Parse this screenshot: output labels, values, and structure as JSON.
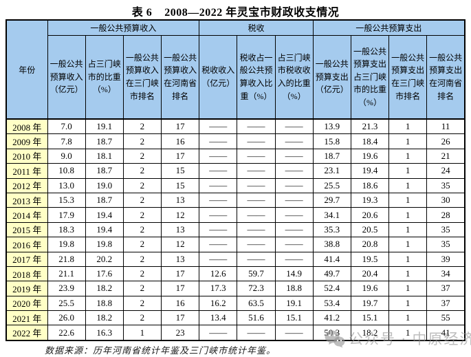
{
  "title": "表 6    2008—2022 年灵宝市财政收支情况",
  "table": {
    "year_header": "年份",
    "groups": [
      {
        "label": "一般公共预算收入",
        "span": 4
      },
      {
        "label": "税收",
        "span": 3
      },
      {
        "label": "一般公共预算支出",
        "span": 4
      }
    ],
    "columns": [
      "一般公共预算收入（亿元）",
      "占三门峡市的比重（%）",
      "一般公共预算收入在三门峡市排名",
      "一般公共预算收入在河南省排名",
      "税收收入（亿元）",
      "税收占一般公共预算收入比重（%）",
      "占三门峡市税收收入的比重（%）",
      "一般公共预算支出（亿元）",
      "一般公共预算支出占三门峡市的比重（%）",
      "一般公共预算支出在三门峡市排名",
      "一般公共预算支出在河南省排名"
    ],
    "rows": [
      {
        "year": "2008 年",
        "values": [
          "7.0",
          "19.1",
          "2",
          "17",
          "——",
          "——",
          "——",
          "13.9",
          "21.3",
          "1",
          "11"
        ]
      },
      {
        "year": "2009 年",
        "values": [
          "7.8",
          "18.7",
          "2",
          "16",
          "——",
          "——",
          "——",
          "15.8",
          "18.4",
          "1",
          "26"
        ]
      },
      {
        "year": "2010 年",
        "values": [
          "9.0",
          "18.1",
          "2",
          "17",
          "——",
          "——",
          "——",
          "18.7",
          "19.6",
          "1",
          "21"
        ]
      },
      {
        "year": "2011 年",
        "values": [
          "10.8",
          "18.7",
          "2",
          "15",
          "——",
          "——",
          "——",
          "23.1",
          "19.4",
          "1",
          "24"
        ]
      },
      {
        "year": "2012 年",
        "values": [
          "13.0",
          "19.0",
          "2",
          "15",
          "——",
          "——",
          "——",
          "25.5",
          "18.6",
          "1",
          "35"
        ]
      },
      {
        "year": "2013 年",
        "values": [
          "15.3",
          "18.7",
          "2",
          "13",
          "——",
          "——",
          "——",
          "29.7",
          "19.3",
          "1",
          "30"
        ]
      },
      {
        "year": "2014 年",
        "values": [
          "17.9",
          "19.4",
          "2",
          "12",
          "——",
          "——",
          "——",
          "34.1",
          "20.6",
          "1",
          "28"
        ]
      },
      {
        "year": "2015 年",
        "values": [
          "18.3",
          "19.4",
          "2",
          "13",
          "——",
          "——",
          "——",
          "35.3",
          "20.5",
          "1",
          "35"
        ]
      },
      {
        "year": "2016 年",
        "values": [
          "19.8",
          "19.8",
          "2",
          "12",
          "——",
          "——",
          "——",
          "38.8",
          "20.8",
          "1",
          "35"
        ]
      },
      {
        "year": "2017 年",
        "values": [
          "21.8",
          "20.2",
          "2",
          "13",
          "——",
          "——",
          "——",
          "41.4",
          "19.5",
          "1",
          "39"
        ]
      },
      {
        "year": "2018 年",
        "values": [
          "21.1",
          "17.6",
          "2",
          "17",
          "12.6",
          "59.7",
          "14.9",
          "49.7",
          "20.4",
          "1",
          "34"
        ]
      },
      {
        "year": "2019 年",
        "values": [
          "23.9",
          "18.2",
          "2",
          "17",
          "17.3",
          "72.3",
          "18.8",
          "52.4",
          "19.6",
          "1",
          "37"
        ]
      },
      {
        "year": "2020 年",
        "values": [
          "25.5",
          "18.8",
          "2",
          "16",
          "16.2",
          "63.5",
          "19.1",
          "53.4",
          "19.7",
          "1",
          "37"
        ]
      },
      {
        "year": "2021 年",
        "values": [
          "26.0",
          "18.2",
          "2",
          "17",
          "13.4",
          "51.6",
          "15.1",
          "41.2",
          "15.1",
          "1",
          "55"
        ]
      },
      {
        "year": "2022 年",
        "values": [
          "22.6",
          "16.3",
          "1",
          "23",
          "——",
          "——",
          "——",
          "50.3",
          "18.2",
          "1",
          "41"
        ]
      }
    ]
  },
  "footer": {
    "source": "数据来源：历年河南省统计年鉴及三门峡市统计年鉴。"
  },
  "watermark": {
    "icon": "wechat-icon",
    "text": "公众号 · 中原经济"
  },
  "colors": {
    "header_bg": "#a5cbee",
    "year_bg": "#ffffc6",
    "border": "#000000",
    "watermark": "#969696"
  }
}
